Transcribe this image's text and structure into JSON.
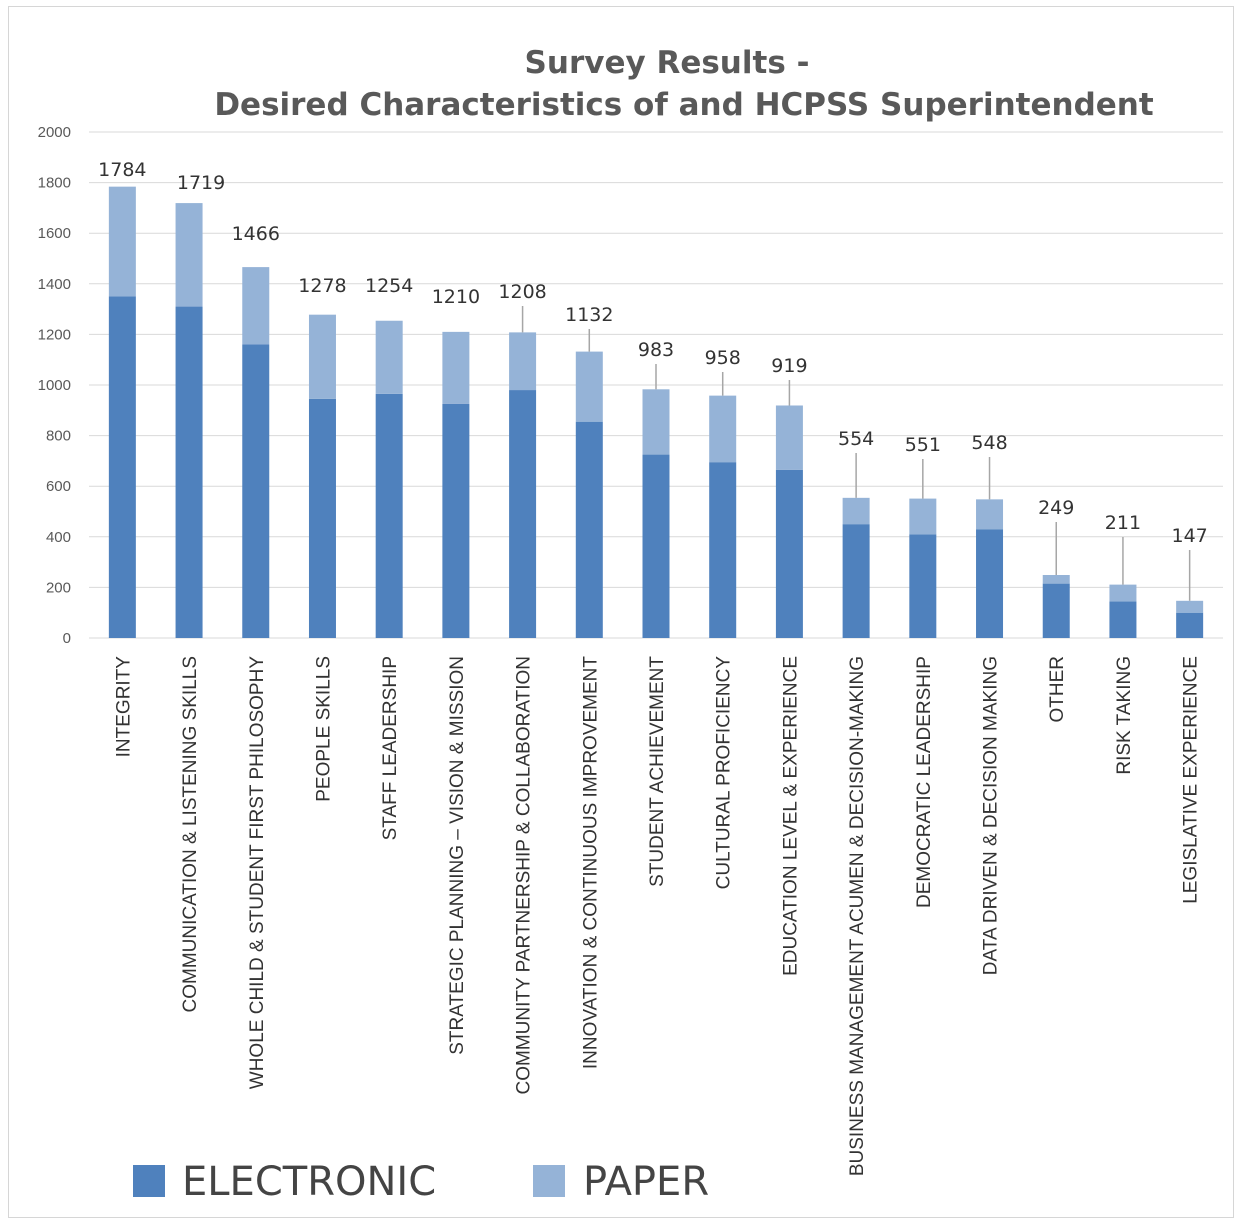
{
  "chart_data": {
    "type": "bar",
    "stacked": true,
    "title": "Survey Results -",
    "subtitle": "Desired Characteristics of and HCPSS Superintendent",
    "xlabel": "",
    "ylabel": "",
    "ylim": [
      0,
      2000
    ],
    "yticks": [
      0,
      200,
      400,
      600,
      800,
      1000,
      1200,
      1400,
      1600,
      1800,
      2000
    ],
    "grid": true,
    "legend_position": "bottom-left",
    "categories": [
      "INTEGRITY",
      "COMMUNICATION & LISTENING SKILLS",
      "WHOLE CHILD & STUDENT FIRST PHILOSOPHY",
      "PEOPLE SKILLS",
      "STAFF LEADERSHIP",
      "STRATEGIC PLANNING – VISION & MISSION",
      "COMMUNITY PARTNERSHIP & COLLABORATION",
      "INNOVATION & CONTINUOUS IMPROVEMENT",
      "STUDENT ACHIEVEMENT",
      "CULTURAL PROFICIENCY",
      "EDUCATION LEVEL & EXPERIENCE",
      "BUSINESS MANAGEMENT ACUMEN & DECISION-MAKING",
      "DEMOCRATIC LEADERSHIP",
      "DATA DRIVEN & DECISION MAKING",
      "OTHER",
      "RISK TAKING",
      "LEGISLATIVE EXPERIENCE"
    ],
    "series": [
      {
        "name": "ELECTRONIC",
        "color": "#4f81bd",
        "values": [
          1350,
          1310,
          1160,
          945,
          965,
          925,
          980,
          855,
          725,
          695,
          665,
          450,
          410,
          430,
          215,
          145,
          100
        ]
      },
      {
        "name": "PAPER",
        "color": "#95b3d7",
        "values": [
          434,
          409,
          306,
          333,
          289,
          285,
          228,
          277,
          258,
          263,
          254,
          104,
          141,
          118,
          34,
          66,
          47
        ]
      }
    ],
    "totals": [
      1784,
      1719,
      1466,
      1278,
      1254,
      1210,
      1208,
      1132,
      983,
      958,
      919,
      554,
      551,
      548,
      249,
      211,
      147
    ]
  },
  "colors": {
    "grid": "#d9d9d9",
    "text": "#595959",
    "leader": "#a6a6a6"
  }
}
